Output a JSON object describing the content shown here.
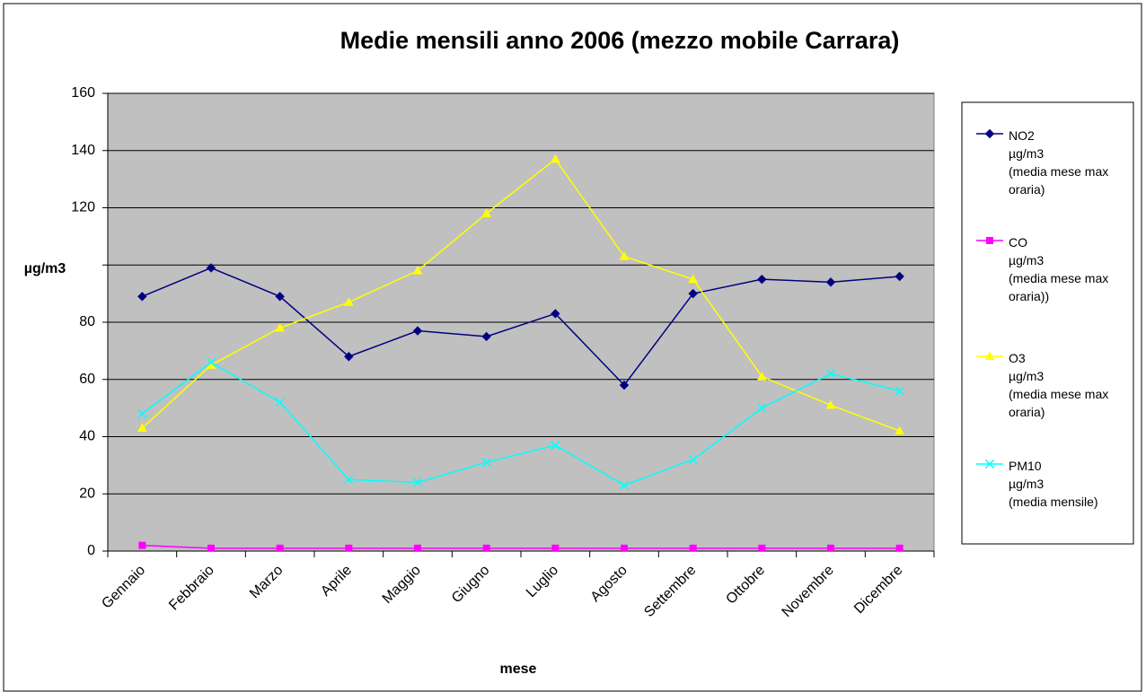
{
  "chart_data": {
    "type": "line",
    "title": "Medie mensili anno 2006 (mezzo mobile Carrara)",
    "x_label": "mese",
    "y_label": "µg/m3",
    "categories": [
      "Gennaio",
      "Febbraio",
      "Marzo",
      "Aprile",
      "Maggio",
      "Giugno",
      "Luglio",
      "Agosto",
      "Settembre",
      "Ottobre",
      "Novembre",
      "Dicembre"
    ],
    "series": [
      {
        "name": "NO2\nµg/m3\n(media mese max\noraria)",
        "color": "#000080",
        "marker": "diamond",
        "values": [
          89,
          99,
          89,
          68,
          77,
          75,
          83,
          58,
          90,
          95,
          94,
          96
        ]
      },
      {
        "name": "CO\nµg/m3\n(media mese max\noraria))",
        "color": "#ff00ff",
        "marker": "square",
        "values": [
          2,
          1,
          1,
          1,
          1,
          1,
          1,
          1,
          1,
          1,
          1,
          1
        ]
      },
      {
        "name": "O3\nµg/m3\n(media mese max\noraria)",
        "color": "#ffff00",
        "marker": "triangle",
        "values": [
          43,
          65,
          78,
          87,
          98,
          118,
          137,
          103,
          95,
          61,
          51,
          42
        ]
      },
      {
        "name": "PM10\nµg/m3\n(media mensile)",
        "color": "#00ffff",
        "marker": "x",
        "values": [
          48,
          66,
          52,
          25,
          24,
          31,
          37,
          23,
          32,
          50,
          62,
          56
        ]
      }
    ],
    "ylim": [
      0,
      160
    ],
    "yticks": [
      0,
      20,
      40,
      60,
      80,
      {
        "value": 100,
        "label": null
      },
      120,
      140,
      160
    ],
    "grid": true,
    "plot_background": "#c0c0c0",
    "legend": "right"
  }
}
